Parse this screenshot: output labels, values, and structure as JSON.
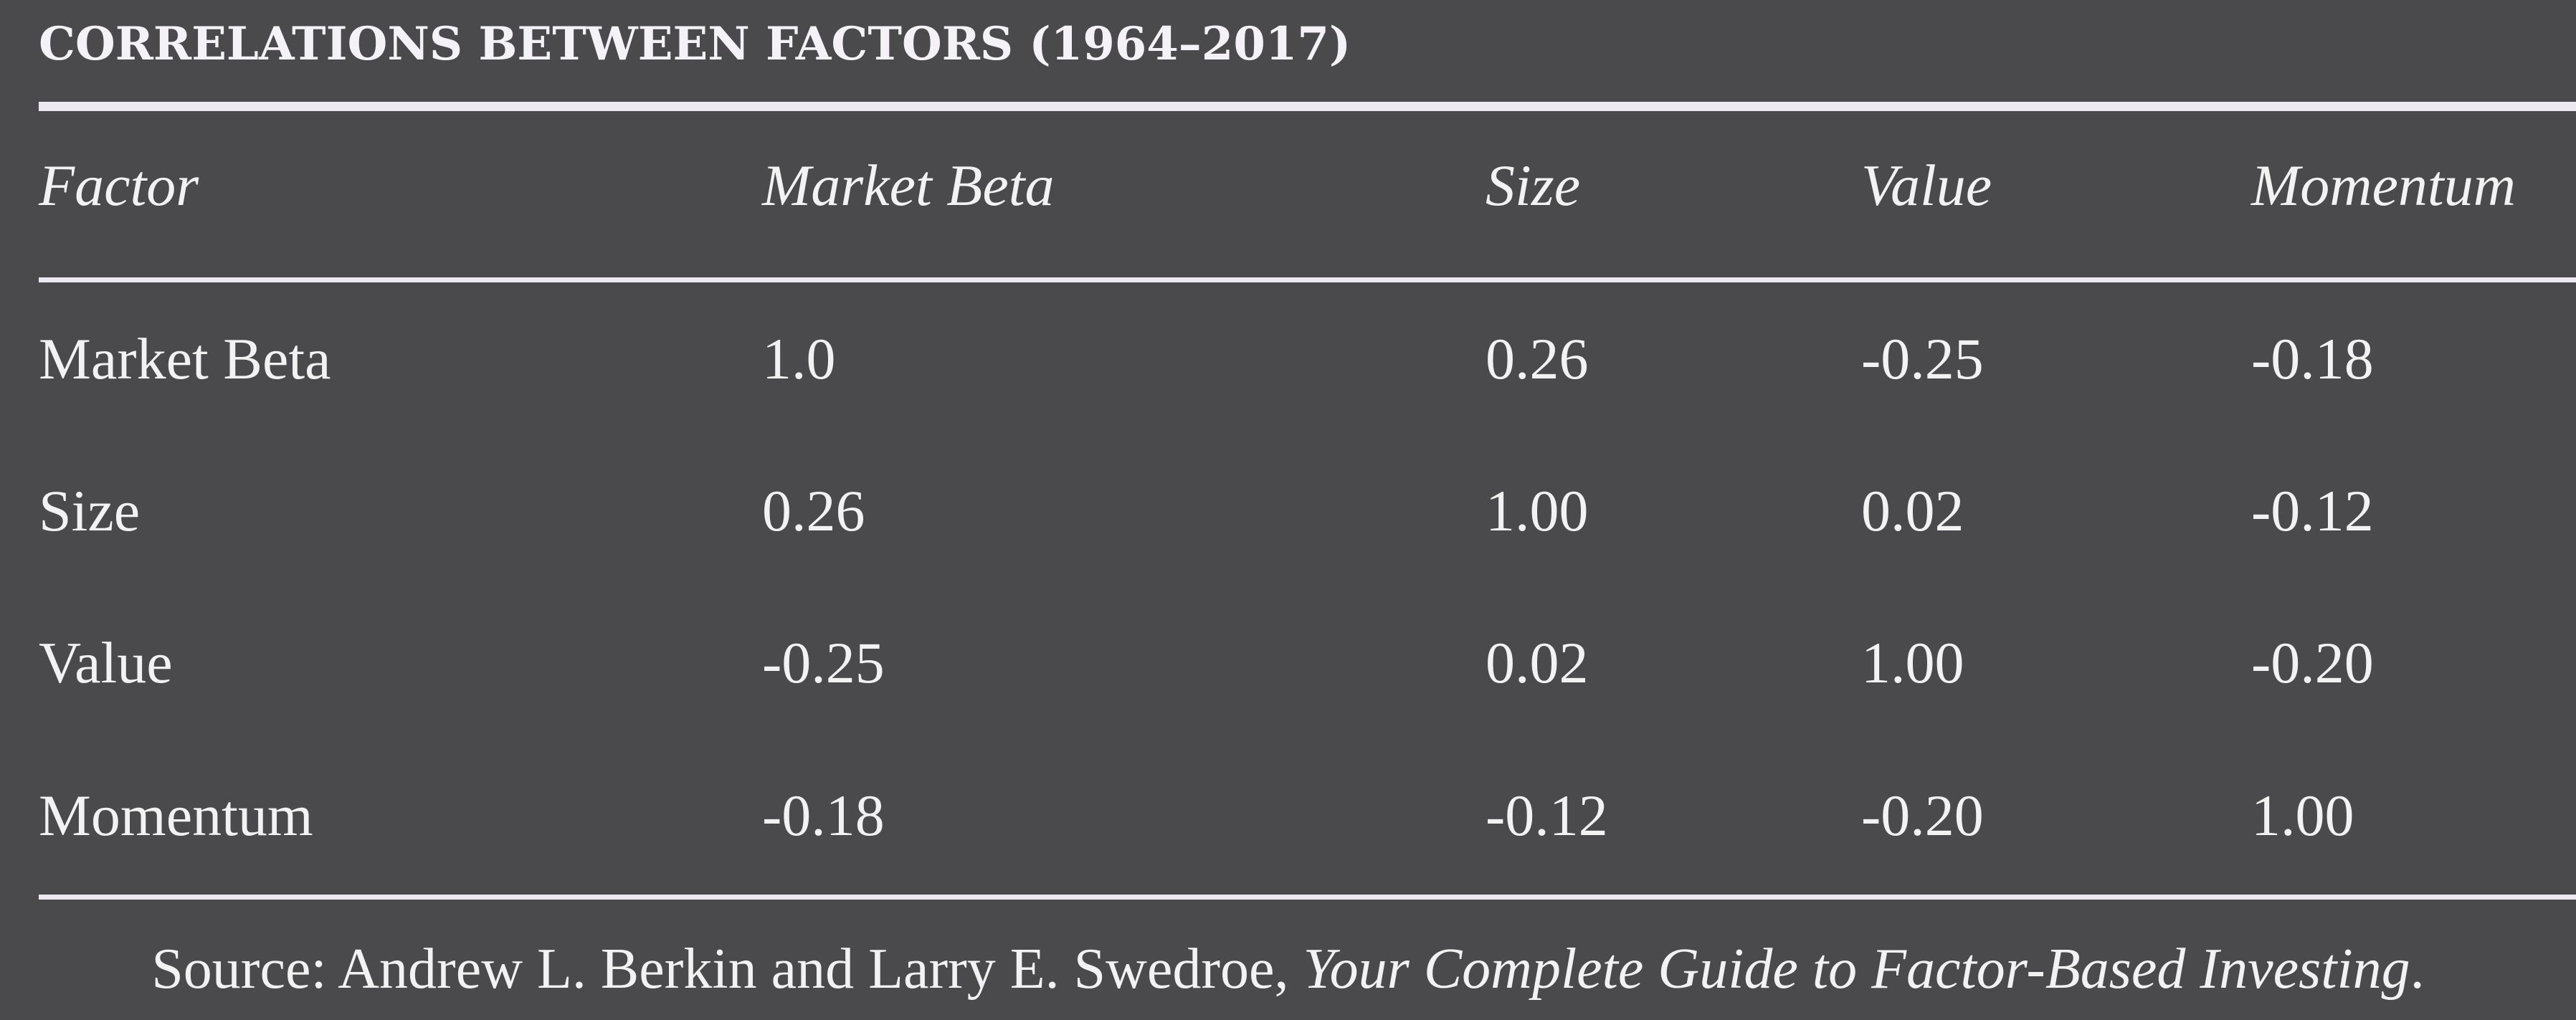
{
  "chart_data": {
    "type": "table",
    "title": "CORRELATIONS BETWEEN FACTORS (1964–2017)",
    "columns": [
      "Factor",
      "Market Beta",
      "Size",
      "Value",
      "Momentum"
    ],
    "rows": [
      [
        "Market Beta",
        "1.0",
        "0.26",
        "-0.25",
        "-0.18"
      ],
      [
        "Size",
        "0.26",
        "1.00",
        "0.02",
        "-0.12"
      ],
      [
        "Value",
        "-0.25",
        "0.02",
        "1.00",
        "-0.20"
      ],
      [
        "Momentum",
        "-0.18",
        "-0.12",
        "-0.20",
        "1.00"
      ]
    ],
    "source_prefix": "Source: Andrew L. Berkin and Larry E. Swedroe,",
    "source_book": "Your Complete Guide to Factor-Based Investing",
    "source_suffix": "."
  },
  "colors": {
    "background": "#4a4a4d",
    "text": "#f2f2f2",
    "rule": "#ece9f1"
  }
}
